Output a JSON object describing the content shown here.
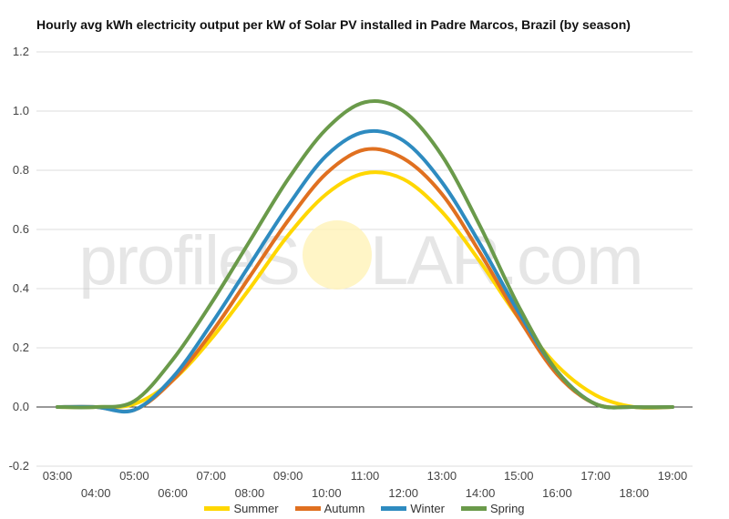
{
  "chart_data": {
    "type": "line",
    "title": "Hourly avg kWh electricity output per kW of Solar PV installed in Padre Marcos, Brazil (by season)",
    "xlabel": "",
    "ylabel": "",
    "ylim": [
      -0.2,
      1.2
    ],
    "yticks": [
      "-0.2",
      "0.0",
      "0.2",
      "0.4",
      "0.6",
      "0.8",
      "1.0",
      "1.2"
    ],
    "grid": true,
    "legend_position": "bottom",
    "x_ticks": [
      "03:00",
      "04:00",
      "05:00",
      "06:00",
      "07:00",
      "08:00",
      "09:00",
      "10:00",
      "11:00",
      "12:00",
      "13:00",
      "14:00",
      "15:00",
      "16:00",
      "17:00",
      "18:00",
      "19:00"
    ],
    "series": [
      {
        "name": "Summer",
        "color": "#ffd700",
        "values": [
          0,
          0,
          0.01,
          0.09,
          0.23,
          0.4,
          0.58,
          0.72,
          0.79,
          0.77,
          0.66,
          0.49,
          0.3,
          0.14,
          0.04,
          0,
          0
        ]
      },
      {
        "name": "Autumn",
        "color": "#e07020",
        "values": [
          0,
          0,
          -0.01,
          0.09,
          0.25,
          0.44,
          0.63,
          0.79,
          0.87,
          0.84,
          0.72,
          0.52,
          0.3,
          0.11,
          0.01,
          0,
          0
        ]
      },
      {
        "name": "Winter",
        "color": "#2e8bc0",
        "values": [
          0,
          0,
          -0.01,
          0.1,
          0.28,
          0.48,
          0.68,
          0.85,
          0.93,
          0.9,
          0.76,
          0.55,
          0.32,
          0.12,
          0.01,
          0,
          0
        ]
      },
      {
        "name": "Spring",
        "color": "#6a9a4a",
        "values": [
          0,
          0,
          0.02,
          0.16,
          0.35,
          0.56,
          0.77,
          0.94,
          1.03,
          1.0,
          0.85,
          0.61,
          0.34,
          0.12,
          0.01,
          0,
          0
        ]
      }
    ]
  },
  "watermark": {
    "left": "profileS",
    "right": "LAR.com"
  }
}
